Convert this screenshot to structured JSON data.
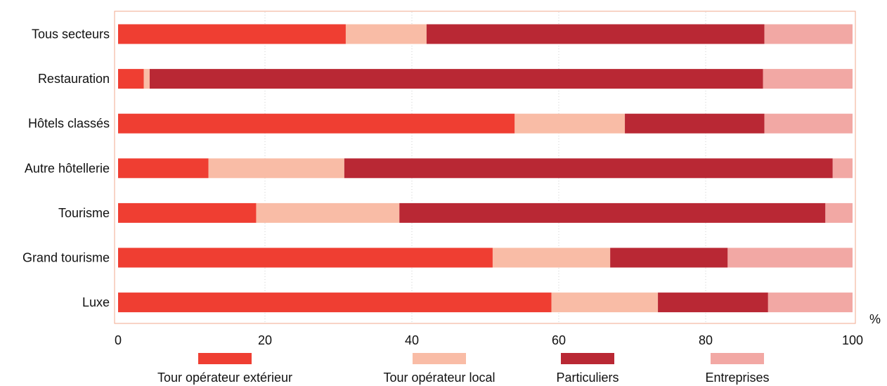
{
  "chart_data": {
    "type": "bar",
    "orientation": "horizontal",
    "stacked": true,
    "categories": [
      "Tous secteurs",
      "Restauration",
      "Hôtels classés",
      "Autre hôtellerie",
      "Tourisme",
      "Grand tourisme",
      "Luxe"
    ],
    "series": [
      {
        "name": "Tour opérateur extérieur",
        "color": "#ef3e32",
        "values": [
          31,
          3.5,
          54,
          12.3,
          18.8,
          51,
          59
        ]
      },
      {
        "name": "Tour opérateur local",
        "color": "#f9bca6",
        "values": [
          11,
          0.8,
          15,
          18.5,
          19.5,
          16,
          14.5
        ]
      },
      {
        "name": "Particuliers",
        "color": "#b92834",
        "values": [
          46,
          83.5,
          19,
          66.5,
          58,
          16,
          15
        ]
      },
      {
        "name": "Entreprises",
        "color": "#f2a8a4",
        "values": [
          12,
          12.2,
          12,
          2.7,
          3.7,
          17,
          11.5
        ]
      }
    ],
    "xlim": [
      0,
      100
    ],
    "xticks": [
      "0",
      "20",
      "40",
      "60",
      "80",
      "100"
    ],
    "xunit": "%",
    "grid": "vertical dotted",
    "legend_position": "bottom"
  }
}
